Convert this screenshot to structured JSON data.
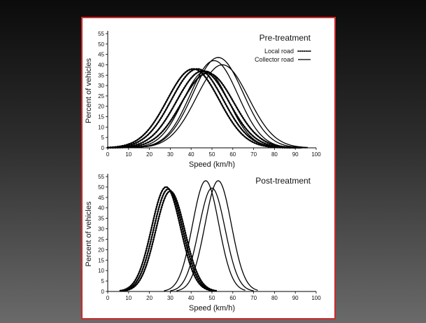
{
  "chart_data": [
    {
      "type": "line",
      "title": "Pre-treatment",
      "xlabel": "Speed (km/h)",
      "ylabel": "Percent of vehicles",
      "xlim": [
        0,
        100
      ],
      "ylim": [
        0,
        55
      ],
      "xticks": [
        0,
        10,
        20,
        30,
        40,
        50,
        60,
        70,
        80,
        90,
        100
      ],
      "yticks": [
        0,
        5,
        10,
        15,
        20,
        25,
        30,
        35,
        40,
        45,
        50,
        55
      ],
      "grid": false,
      "legend": {
        "position": "top-right",
        "items": [
          {
            "label": "Local road",
            "style": "dotted"
          },
          {
            "label": "Collector road",
            "style": "solid"
          }
        ]
      },
      "series": [
        {
          "group": "local",
          "style": "dotted",
          "mean": 41,
          "sd": 12.5,
          "peak": 38,
          "min": 0,
          "max": 88
        },
        {
          "group": "local",
          "style": "dotted",
          "mean": 43,
          "sd": 12.5,
          "peak": 38,
          "min": 0,
          "max": 90
        },
        {
          "group": "local",
          "style": "dotted",
          "mean": 45.5,
          "sd": 12.5,
          "peak": 37,
          "min": 0,
          "max": 92
        },
        {
          "group": "local",
          "style": "dotted",
          "mean": 48,
          "sd": 12.5,
          "peak": 36,
          "min": 0,
          "max": 93
        },
        {
          "group": "collector",
          "style": "solid",
          "mean": 47,
          "sd": 11,
          "peak": 37,
          "min": 8,
          "max": 95
        },
        {
          "group": "collector",
          "style": "solid",
          "mean": 51,
          "sd": 11.5,
          "peak": 42,
          "min": 12,
          "max": 96
        },
        {
          "group": "collector",
          "style": "solid",
          "mean": 53,
          "sd": 12,
          "peak": 43.5,
          "min": 15,
          "max": 96
        },
        {
          "group": "collector",
          "style": "solid",
          "mean": 55,
          "sd": 12.5,
          "peak": 40,
          "min": 18,
          "max": 96
        }
      ]
    },
    {
      "type": "line",
      "title": "Post-treatment",
      "xlabel": "Speed (km/h)",
      "ylabel": "Percent of vehicles",
      "xlim": [
        0,
        100
      ],
      "ylim": [
        0,
        55
      ],
      "xticks": [
        0,
        10,
        20,
        30,
        40,
        50,
        60,
        70,
        80,
        90,
        100
      ],
      "yticks": [
        0,
        5,
        10,
        15,
        20,
        25,
        30,
        35,
        40,
        45,
        50,
        55
      ],
      "grid": false,
      "series": [
        {
          "group": "local",
          "style": "dotted",
          "mean": 28,
          "sd": 7,
          "peak": 50,
          "min": 6,
          "max": 50
        },
        {
          "group": "local",
          "style": "dotted",
          "mean": 29,
          "sd": 7,
          "peak": 49,
          "min": 7,
          "max": 51
        },
        {
          "group": "local",
          "style": "dotted",
          "mean": 30,
          "sd": 7,
          "peak": 48,
          "min": 8,
          "max": 52
        },
        {
          "group": "collector",
          "style": "solid",
          "mean": 47,
          "sd": 6.3,
          "peak": 53,
          "min": 27,
          "max": 66
        },
        {
          "group": "collector",
          "style": "solid",
          "mean": 50,
          "sd": 6.3,
          "peak": 49.5,
          "min": 30,
          "max": 70
        },
        {
          "group": "collector",
          "style": "solid",
          "mean": 53,
          "sd": 6.3,
          "peak": 53,
          "min": 33,
          "max": 72
        }
      ]
    }
  ]
}
